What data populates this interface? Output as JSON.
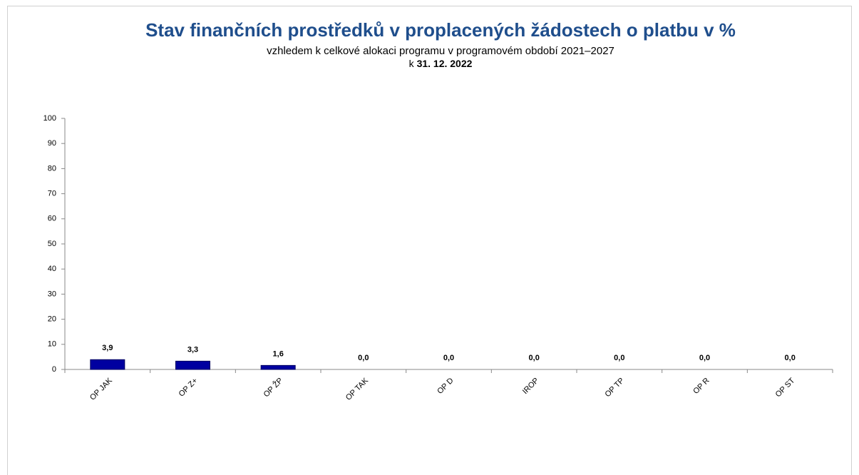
{
  "chart_data": {
    "type": "bar",
    "title": "Stav finančních prostředků v proplacených žádostech o platbu v %",
    "subtitle": "vzhledem k celkové alokaci programu v programovém období 2021–2027",
    "date_prefix": "k",
    "date": "31. 12. 2022",
    "categories": [
      "OP JAK",
      "OP Z+",
      "OP ŽP",
      "OP TAK",
      "OP D",
      "IROP",
      "OP TP",
      "OP R",
      "OP ST"
    ],
    "values": [
      3.9,
      3.3,
      1.6,
      0,
      0,
      0,
      0,
      0,
      0
    ],
    "value_labels": [
      "3,9",
      "3,3",
      "1,6",
      "0,0",
      "0,0",
      "0,0",
      "0,0",
      "0,0",
      "0,0"
    ],
    "color": "#0000a0",
    "ylim": [
      0,
      100
    ],
    "yticks": [
      0,
      10,
      20,
      30,
      40,
      50,
      60,
      70,
      80,
      90,
      100
    ],
    "grid": false
  }
}
